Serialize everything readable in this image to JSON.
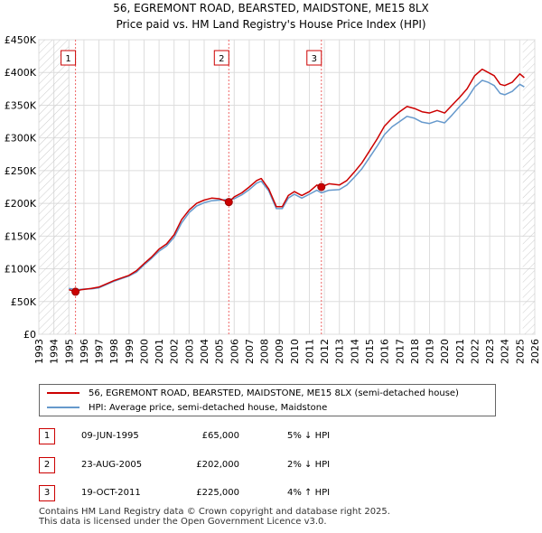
{
  "title": {
    "line1": "56, EGREMONT ROAD, BEARSTED, MAIDSTONE, ME15 8LX",
    "line2": "Price paid vs. HM Land Registry's House Price Index (HPI)"
  },
  "chart_data": {
    "type": "line",
    "title": "56, EGREMONT ROAD, BEARSTED, MAIDSTONE, ME15 8LX — Price paid vs. HM Land Registry's House Price Index (HPI)",
    "xlim": [
      1993,
      2026
    ],
    "ylim": [
      0,
      450000
    ],
    "x_ticks": [
      "1993",
      "1994",
      "1995",
      "1996",
      "1997",
      "1998",
      "1999",
      "2000",
      "2001",
      "2002",
      "2003",
      "2004",
      "2005",
      "2006",
      "2007",
      "2008",
      "2009",
      "2010",
      "2011",
      "2012",
      "2013",
      "2014",
      "2015",
      "2016",
      "2017",
      "2018",
      "2019",
      "2020",
      "2021",
      "2022",
      "2023",
      "2024",
      "2025",
      "2026"
    ],
    "y_ticks": [
      {
        "value": 0,
        "label": "£0"
      },
      {
        "value": 50000,
        "label": "£50K"
      },
      {
        "value": 100000,
        "label": "£100K"
      },
      {
        "value": 150000,
        "label": "£150K"
      },
      {
        "value": 200000,
        "label": "£200K"
      },
      {
        "value": 250000,
        "label": "£250K"
      },
      {
        "value": 300000,
        "label": "£300K"
      },
      {
        "value": 350000,
        "label": "£350K"
      },
      {
        "value": 400000,
        "label": "£400K"
      },
      {
        "value": 450000,
        "label": "£450K"
      }
    ],
    "grid": true,
    "hatch_before": 1995.0,
    "hatch_after": 2025.2,
    "series": [
      {
        "name": "56, EGREMONT ROAD, BEARSTED, MAIDSTONE, ME15 8LX (semi-detached house)",
        "color": "#cc0000",
        "x": [
          1995.0,
          1995.44,
          1995.8,
          1996.5,
          1997.0,
          1997.5,
          1998.0,
          1998.5,
          1999.0,
          1999.5,
          2000.0,
          2000.5,
          2001.0,
          2001.5,
          2002.0,
          2002.5,
          2003.0,
          2003.5,
          2004.0,
          2004.5,
          2005.0,
          2005.64,
          2006.0,
          2006.5,
          2007.0,
          2007.5,
          2007.8,
          2008.3,
          2008.8,
          2009.2,
          2009.6,
          2010.0,
          2010.5,
          2011.0,
          2011.5,
          2011.8,
          2012.3,
          2013.0,
          2013.5,
          2014.0,
          2014.5,
          2015.0,
          2015.5,
          2016.0,
          2016.5,
          2017.0,
          2017.5,
          2018.0,
          2018.5,
          2019.0,
          2019.5,
          2020.0,
          2020.5,
          2021.0,
          2021.5,
          2022.0,
          2022.5,
          2022.9,
          2023.3,
          2023.7,
          2024.0,
          2024.5,
          2025.0,
          2025.3
        ],
        "values": [
          68000,
          65000,
          68000,
          70000,
          72000,
          77000,
          82000,
          86000,
          90000,
          97000,
          108000,
          118000,
          130000,
          138000,
          152000,
          175000,
          190000,
          200000,
          205000,
          208000,
          207000,
          202000,
          210000,
          216000,
          225000,
          235000,
          238000,
          222000,
          195000,
          195000,
          212000,
          218000,
          212000,
          218000,
          228000,
          225000,
          230000,
          228000,
          235000,
          248000,
          262000,
          280000,
          298000,
          318000,
          330000,
          340000,
          348000,
          345000,
          340000,
          338000,
          342000,
          338000,
          350000,
          362000,
          375000,
          395000,
          405000,
          400000,
          395000,
          382000,
          380000,
          385000,
          398000,
          392000
        ]
      },
      {
        "name": "HPI: Average price, semi-detached house, Maidstone",
        "color": "#6699cc",
        "x": [
          1995.0,
          1995.5,
          1996.0,
          1996.5,
          1997.0,
          1997.5,
          1998.0,
          1998.5,
          1999.0,
          1999.5,
          2000.0,
          2000.5,
          2001.0,
          2001.5,
          2002.0,
          2002.5,
          2003.0,
          2003.5,
          2004.0,
          2004.5,
          2005.0,
          2005.64,
          2006.0,
          2006.5,
          2007.0,
          2007.5,
          2007.8,
          2008.3,
          2008.8,
          2009.2,
          2009.6,
          2010.0,
          2010.5,
          2011.0,
          2011.5,
          2011.8,
          2012.3,
          2013.0,
          2013.5,
          2014.0,
          2014.5,
          2015.0,
          2015.5,
          2016.0,
          2016.5,
          2017.0,
          2017.5,
          2018.0,
          2018.5,
          2019.0,
          2019.5,
          2020.0,
          2020.5,
          2021.0,
          2021.5,
          2022.0,
          2022.5,
          2022.9,
          2023.3,
          2023.7,
          2024.0,
          2024.5,
          2025.0,
          2025.3
        ],
        "values": [
          70000,
          68000,
          69000,
          69500,
          71000,
          76000,
          81000,
          85000,
          89000,
          95000,
          106000,
          116000,
          127000,
          135000,
          148000,
          170000,
          186000,
          196000,
          201000,
          204000,
          205000,
          206000,
          207000,
          213000,
          221000,
          231000,
          234000,
          219000,
          192000,
          192000,
          208000,
          214000,
          208000,
          214000,
          220000,
          216000,
          220000,
          221000,
          228000,
          240000,
          253000,
          270000,
          287000,
          305000,
          317000,
          325000,
          333000,
          330000,
          324000,
          322000,
          326000,
          323000,
          335000,
          348000,
          360000,
          378000,
          388000,
          385000,
          380000,
          368000,
          366000,
          371000,
          382000,
          378000
        ]
      }
    ],
    "sales": [
      {
        "id": "1",
        "date": "09-JUN-1995",
        "x": 1995.44,
        "price": 65000,
        "price_label": "£65,000",
        "hpi_label": "5% ↓ HPI"
      },
      {
        "id": "2",
        "date": "23-AUG-2005",
        "x": 2005.64,
        "price": 202000,
        "price_label": "£202,000",
        "hpi_label": "2% ↓ HPI"
      },
      {
        "id": "3",
        "date": "19-OCT-2011",
        "x": 2011.8,
        "price": 225000,
        "price_label": "£225,000",
        "hpi_label": "4% ↑ HPI"
      }
    ]
  },
  "legend": {
    "series1_label": "56, EGREMONT ROAD, BEARSTED, MAIDSTONE, ME15 8LX (semi-detached house)",
    "series1_color": "#cc0000",
    "series2_label": "HPI: Average price, semi-detached house, Maidstone",
    "series2_color": "#6699cc"
  },
  "table": {
    "rows": [
      {
        "id": "1",
        "date": "09-JUN-1995",
        "price": "£65,000",
        "hpi": "5% ↓ HPI"
      },
      {
        "id": "2",
        "date": "23-AUG-2005",
        "price": "£202,000",
        "hpi": "2% ↓ HPI"
      },
      {
        "id": "3",
        "date": "19-OCT-2011",
        "price": "£225,000",
        "hpi": "4% ↑ HPI"
      }
    ]
  },
  "footer": {
    "line1": "Contains HM Land Registry data © Crown copyright and database right 2025.",
    "line2": "This data is licensed under the Open Government Licence v3.0."
  }
}
